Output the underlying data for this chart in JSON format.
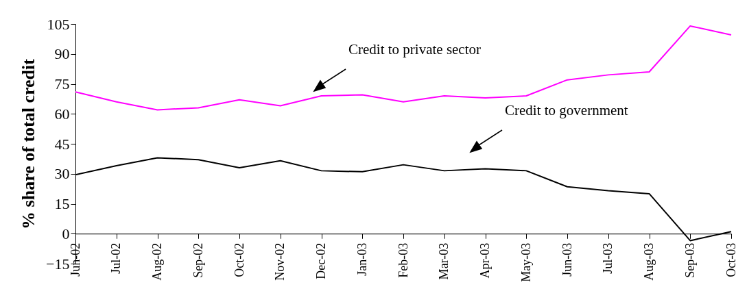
{
  "chart_data": {
    "type": "line",
    "ylabel": "% share of total credit",
    "categories": [
      "Jun-02",
      "Jul-02",
      "Aug-02",
      "Sep-02",
      "Oct-02",
      "Nov-02",
      "Dec-02",
      "Jan-03",
      "Feb-03",
      "Mar-03",
      "Apr-03",
      "May-03",
      "Jun-03",
      "Jul-03",
      "Aug-03",
      "Sep-03",
      "Oct-03"
    ],
    "series": [
      {
        "color": "#ff00ff",
        "values": [
          71,
          66,
          62,
          63,
          67,
          64,
          69,
          69.5,
          66,
          69,
          68,
          69,
          77,
          79.5,
          81,
          104,
          99.5
        ]
      },
      {
        "color": "#000000",
        "values": [
          29.5,
          34,
          38,
          37,
          33,
          36.5,
          31.5,
          31,
          34.5,
          31.5,
          32.5,
          31.5,
          23.5,
          21.5,
          20,
          -3.5,
          1
        ]
      }
    ],
    "ylim": [
      -15,
      105
    ],
    "yticks": [
      -15,
      0,
      15,
      30,
      45,
      60,
      75,
      90,
      105
    ],
    "grid": false,
    "legend": false,
    "marker": "none",
    "line_style": "solid",
    "annotations": [
      "Credit to private sector",
      "Credit to government"
    ]
  }
}
